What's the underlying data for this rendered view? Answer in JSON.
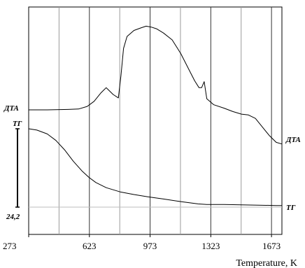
{
  "chart_data": {
    "type": "line",
    "xlabel": "Temperature, K",
    "x_ticks": [
      273,
      623,
      973,
      1323,
      1673
    ],
    "xlim": [
      273,
      1733
    ],
    "grid": true,
    "series": [
      {
        "name": "ДТА",
        "x": [
          273,
          380,
          500,
          560,
          610,
          650,
          690,
          720,
          760,
          790,
          805,
          820,
          840,
          880,
          920,
          950,
          980,
          1010,
          1050,
          1100,
          1150,
          1200,
          1230,
          1255,
          1270,
          1285,
          1300,
          1340,
          1400,
          1450,
          1500,
          1540,
          1580,
          1620,
          1660,
          1700,
          1733
        ],
        "y": [
          0.0,
          0.0,
          0.005,
          0.01,
          0.04,
          0.1,
          0.2,
          0.26,
          0.18,
          0.14,
          0.4,
          0.72,
          0.86,
          0.93,
          0.96,
          0.98,
          0.97,
          0.95,
          0.9,
          0.82,
          0.66,
          0.46,
          0.34,
          0.26,
          0.26,
          0.33,
          0.13,
          0.06,
          0.02,
          -0.02,
          -0.05,
          -0.06,
          -0.1,
          -0.2,
          -0.3,
          -0.38,
          -0.4
        ]
      },
      {
        "name": "ТГ",
        "x": [
          273,
          320,
          380,
          430,
          480,
          530,
          580,
          620,
          660,
          720,
          800,
          880,
          960,
          1050,
          1150,
          1250,
          1300,
          1400,
          1500,
          1600,
          1700,
          1733
        ],
        "y": [
          0.0,
          -0.4,
          -1.6,
          -3.6,
          -6.5,
          -10.0,
          -13.0,
          -15.0,
          -16.6,
          -18.2,
          -19.5,
          -20.3,
          -21.0,
          -21.7,
          -22.5,
          -23.2,
          -23.4,
          -23.4,
          -23.5,
          -23.6,
          -23.7,
          -23.7
        ]
      }
    ],
    "annotations": [
      "24,2"
    ]
  }
}
